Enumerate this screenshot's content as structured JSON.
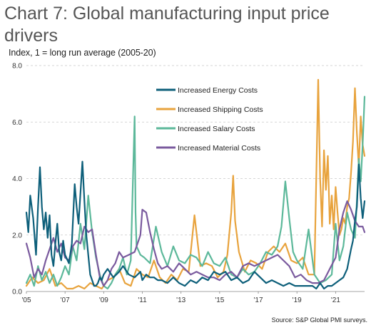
{
  "title": "Chart 7: Global manufacturing input price drivers",
  "ylabel": "Index, 1 = long run average (2005-20)",
  "source": "Source: S&P Global PMI surveys.",
  "chart_data": {
    "type": "line",
    "title": "Chart 7: Global manufacturing input price drivers",
    "ylabel": "Index, 1 = long run average (2005-20)",
    "xlabel": "",
    "ylim": [
      0,
      8
    ],
    "yticks": [
      "0.0",
      "2.0",
      "4.0",
      "6.0",
      "8.0"
    ],
    "xticks": [
      "'05",
      "'07",
      "'09",
      "'11",
      "'13",
      "'15",
      "'17",
      "'19",
      "'21"
    ],
    "xtick_years": [
      2005,
      2007,
      2009,
      2011,
      2013,
      2015,
      2017,
      2019,
      2021
    ],
    "x_start": "2005-01",
    "x_end": "2022-06",
    "grid": "horizontal dashed",
    "legend": "top-center",
    "series": [
      {
        "name": "Increased Energy Costs",
        "color": "#0d5f7a",
        "x": [
          2005.0,
          2005.1,
          2005.2,
          2005.35,
          2005.5,
          2005.6,
          2005.7,
          2005.8,
          2005.9,
          2006.0,
          2006.1,
          2006.2,
          2006.3,
          2006.4,
          2006.5,
          2006.6,
          2006.7,
          2006.8,
          2006.9,
          2007.0,
          2007.2,
          2007.35,
          2007.5,
          2007.6,
          2007.7,
          2007.8,
          2007.9,
          2008.0,
          2008.1,
          2008.2,
          2008.3,
          2008.4,
          2008.5,
          2008.6,
          2008.7,
          2008.8,
          2008.9,
          2009.0,
          2009.2,
          2009.5,
          2009.8,
          2010.0,
          2010.3,
          2010.6,
          2010.9,
          2011.0,
          2011.2,
          2011.4,
          2011.6,
          2011.8,
          2012.0,
          2012.3,
          2012.6,
          2012.9,
          2013.2,
          2013.5,
          2013.8,
          2014.1,
          2014.4,
          2014.7,
          2015.0,
          2015.3,
          2015.6,
          2015.9,
          2016.2,
          2016.5,
          2016.8,
          2017.1,
          2017.4,
          2017.7,
          2018.0,
          2018.3,
          2018.6,
          2018.9,
          2019.2,
          2019.5,
          2019.8,
          2020.0,
          2020.2,
          2020.4,
          2020.6,
          2020.8,
          2021.0,
          2021.2,
          2021.4,
          2021.6,
          2021.8,
          2021.9,
          2022.0,
          2022.1,
          2022.2,
          2022.3,
          2022.4,
          2022.5
        ],
        "y": [
          2.8,
          2.1,
          3.4,
          2.6,
          1.3,
          3.0,
          4.4,
          3.0,
          2.2,
          2.8,
          1.9,
          2.7,
          1.3,
          0.9,
          1.7,
          2.4,
          1.4,
          1.1,
          1.8,
          1.3,
          1.0,
          1.7,
          3.8,
          3.0,
          2.4,
          3.5,
          4.6,
          3.2,
          2.0,
          1.3,
          0.6,
          0.4,
          0.2,
          0.2,
          0.3,
          0.5,
          0.4,
          0.6,
          0.8,
          0.5,
          0.7,
          0.9,
          0.6,
          0.5,
          0.7,
          0.4,
          0.6,
          0.5,
          0.5,
          0.4,
          0.4,
          0.3,
          0.5,
          0.3,
          0.2,
          0.4,
          0.3,
          0.5,
          0.4,
          0.7,
          0.6,
          0.7,
          0.4,
          0.5,
          0.3,
          0.4,
          0.7,
          0.5,
          0.3,
          0.4,
          0.3,
          0.2,
          0.3,
          0.2,
          0.2,
          0.2,
          0.2,
          0.1,
          0.3,
          0.1,
          0.2,
          0.2,
          0.3,
          0.4,
          0.5,
          0.8,
          1.5,
          1.8,
          2.5,
          3.0,
          4.5,
          3.3,
          2.6,
          3.2
        ]
      },
      {
        "name": "Increased Shipping Costs",
        "color": "#e8a33d",
        "x": [
          2005.0,
          2005.3,
          2005.6,
          2005.9,
          2006.2,
          2006.5,
          2006.8,
          2007.1,
          2007.4,
          2007.7,
          2008.0,
          2008.3,
          2008.6,
          2008.9,
          2009.2,
          2009.5,
          2009.8,
          2010.1,
          2010.4,
          2010.7,
          2011.0,
          2011.3,
          2011.6,
          2011.9,
          2012.2,
          2012.5,
          2012.8,
          2013.1,
          2013.4,
          2013.7,
          2014.0,
          2014.3,
          2014.6,
          2014.9,
          2015.2,
          2015.4,
          2015.6,
          2015.7,
          2015.8,
          2016.0,
          2016.3,
          2016.6,
          2016.9,
          2017.2,
          2017.5,
          2017.8,
          2018.1,
          2018.4,
          2018.7,
          2019.0,
          2019.3,
          2019.6,
          2019.9,
          2020.1,
          2020.2,
          2020.3,
          2020.4,
          2020.5,
          2020.6,
          2020.7,
          2020.8,
          2020.9,
          2021.0,
          2021.1,
          2021.2,
          2021.3,
          2021.4,
          2021.5,
          2021.6,
          2021.7,
          2021.8,
          2021.9,
          2022.0,
          2022.1,
          2022.2,
          2022.3,
          2022.4,
          2022.5
        ],
        "y": [
          0.2,
          0.5,
          0.3,
          0.4,
          0.8,
          0.2,
          0.3,
          0.1,
          0.1,
          0.2,
          0.1,
          0.3,
          0.2,
          0.1,
          0.4,
          0.5,
          0.8,
          0.3,
          0.2,
          0.8,
          0.6,
          0.5,
          1.1,
          0.5,
          0.3,
          0.6,
          0.4,
          0.8,
          0.7,
          2.7,
          0.9,
          1.0,
          0.9,
          0.5,
          0.7,
          1.3,
          2.8,
          4.1,
          2.5,
          1.4,
          0.7,
          1.1,
          1.0,
          0.8,
          1.4,
          1.6,
          1.4,
          1.7,
          1.1,
          1.0,
          1.2,
          0.6,
          0.6,
          7.5,
          4.0,
          2.3,
          5.0,
          3.6,
          4.8,
          2.4,
          3.4,
          2.2,
          3.7,
          2.8,
          2.0,
          2.2,
          2.6,
          2.4,
          3.0,
          3.3,
          4.2,
          5.3,
          7.2,
          5.6,
          4.4,
          6.2,
          5.2,
          4.8
        ]
      },
      {
        "name": "Increased Salary Costs",
        "color": "#5cb89a",
        "x": [
          2005.0,
          2005.2,
          2005.4,
          2005.6,
          2005.8,
          2006.0,
          2006.2,
          2006.4,
          2006.6,
          2006.8,
          2007.0,
          2007.2,
          2007.4,
          2007.6,
          2007.8,
          2008.0,
          2008.2,
          2008.4,
          2008.6,
          2008.8,
          2009.0,
          2009.2,
          2009.4,
          2009.6,
          2009.8,
          2010.0,
          2010.2,
          2010.4,
          2010.6,
          2010.65,
          2010.7,
          2010.9,
          2011.1,
          2011.4,
          2011.7,
          2012.0,
          2012.3,
          2012.6,
          2012.9,
          2013.2,
          2013.5,
          2013.8,
          2014.1,
          2014.4,
          2014.7,
          2015.0,
          2015.3,
          2015.6,
          2015.9,
          2016.2,
          2016.5,
          2016.8,
          2017.1,
          2017.4,
          2017.7,
          2018.0,
          2018.2,
          2018.4,
          2018.6,
          2018.8,
          2019.0,
          2019.3,
          2019.6,
          2019.9,
          2020.2,
          2020.5,
          2020.8,
          2021.0,
          2021.2,
          2021.4,
          2021.6,
          2021.8,
          2022.0,
          2022.1,
          2022.2,
          2022.3,
          2022.4,
          2022.5
        ],
        "y": [
          0.3,
          0.6,
          0.2,
          0.9,
          0.4,
          0.7,
          0.3,
          0.6,
          0.2,
          0.5,
          0.9,
          0.6,
          1.6,
          1.1,
          2.4,
          1.5,
          3.4,
          2.1,
          1.2,
          0.6,
          0.2,
          0.1,
          0.3,
          0.6,
          0.8,
          1.2,
          0.6,
          1.1,
          6.2,
          2.8,
          1.6,
          1.3,
          1.2,
          1.0,
          2.3,
          1.4,
          0.9,
          1.6,
          1.1,
          1.0,
          1.3,
          1.2,
          0.9,
          1.4,
          1.0,
          0.9,
          1.2,
          0.6,
          0.5,
          0.8,
          0.6,
          0.7,
          1.0,
          1.4,
          1.3,
          1.6,
          2.3,
          3.9,
          2.6,
          1.4,
          1.1,
          0.8,
          2.2,
          0.6,
          0.3,
          0.4,
          0.6,
          2.4,
          1.1,
          1.6,
          2.8,
          2.2,
          1.9,
          3.2,
          4.7,
          3.9,
          5.2,
          6.9
        ]
      },
      {
        "name": "Increased Material Costs",
        "color": "#7a5a9e",
        "x": [
          2005.0,
          2005.2,
          2005.4,
          2005.6,
          2005.8,
          2006.0,
          2006.2,
          2006.4,
          2006.6,
          2006.8,
          2007.0,
          2007.2,
          2007.4,
          2007.6,
          2007.8,
          2008.0,
          2008.2,
          2008.4,
          2008.6,
          2008.8,
          2009.0,
          2009.2,
          2009.4,
          2009.6,
          2009.8,
          2010.0,
          2010.3,
          2010.6,
          2010.9,
          2011.0,
          2011.2,
          2011.4,
          2011.6,
          2011.8,
          2012.0,
          2012.3,
          2012.6,
          2012.9,
          2013.2,
          2013.5,
          2013.8,
          2014.1,
          2014.4,
          2014.7,
          2015.0,
          2015.3,
          2015.6,
          2015.9,
          2016.2,
          2016.5,
          2016.8,
          2017.1,
          2017.4,
          2017.7,
          2018.0,
          2018.3,
          2018.6,
          2018.9,
          2019.2,
          2019.5,
          2019.8,
          2020.1,
          2020.4,
          2020.7,
          2021.0,
          2021.2,
          2021.4,
          2021.6,
          2021.8,
          2022.0,
          2022.2,
          2022.4,
          2022.5
        ],
        "y": [
          1.7,
          1.2,
          0.5,
          0.8,
          0.6,
          1.1,
          1.5,
          1.9,
          1.4,
          1.7,
          1.2,
          1.1,
          1.6,
          1.8,
          1.7,
          2.3,
          2.1,
          2.2,
          1.3,
          0.5,
          0.2,
          0.4,
          0.8,
          1.0,
          1.4,
          1.2,
          1.3,
          1.4,
          2.0,
          2.9,
          2.8,
          2.1,
          1.5,
          1.0,
          0.8,
          0.9,
          0.7,
          1.0,
          0.8,
          0.6,
          0.7,
          0.6,
          0.5,
          0.5,
          0.4,
          0.6,
          0.7,
          0.5,
          0.9,
          1.0,
          0.9,
          1.0,
          1.1,
          1.2,
          1.3,
          1.1,
          0.9,
          0.5,
          0.6,
          0.4,
          0.3,
          0.3,
          0.4,
          0.8,
          1.2,
          2.2,
          2.8,
          3.2,
          2.9,
          2.5,
          2.3,
          2.3,
          2.1
        ]
      }
    ]
  }
}
